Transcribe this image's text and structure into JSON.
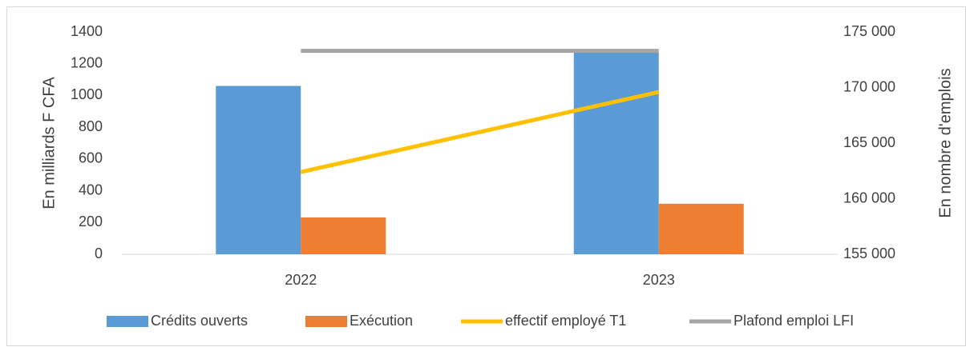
{
  "chart_data": {
    "type": "bar",
    "categories": [
      "2022",
      "2023"
    ],
    "series": [
      {
        "name": "Crédits ouverts",
        "type": "bar",
        "color": "#5b9bd5",
        "values": [
          1060,
          1270
        ]
      },
      {
        "name": "Exécution",
        "type": "bar",
        "color": "#ed7d31",
        "values": [
          232,
          318
        ]
      },
      {
        "name": "effectif employé T1",
        "type": "line",
        "axis": "y2",
        "color": "#ffc000",
        "values": [
          162400,
          169600
        ]
      },
      {
        "name": "Plafond emploi LFI",
        "type": "line",
        "axis": "y2",
        "color": "#a5a5a5",
        "values": [
          173300,
          173300
        ]
      }
    ],
    "ylabel": "En milliards F CFA",
    "y2label": "En nombre d'emplois",
    "ylim": [
      0,
      1400
    ],
    "yticks": [
      0,
      200,
      400,
      600,
      800,
      1000,
      1200,
      1400
    ],
    "y2lim": [
      155000,
      175000
    ],
    "y2ticks": [
      {
        "value": 155000,
        "label": "155 000"
      },
      {
        "value": 160000,
        "label": "160 000"
      },
      {
        "value": 165000,
        "label": "165 000"
      },
      {
        "value": 170000,
        "label": "170 000"
      },
      {
        "value": 175000,
        "label": "175 000"
      }
    ],
    "grid": false,
    "legend": "bottom"
  }
}
